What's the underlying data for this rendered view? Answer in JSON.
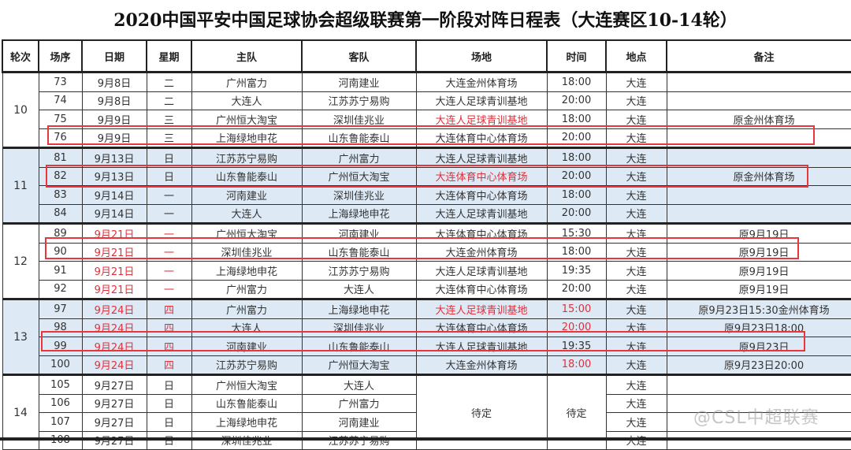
{
  "title": "2020中国平安中国足球协会超级联赛第一阶段对阵日程表（大连赛区10-14轮）",
  "headers": [
    "轮次",
    "场序",
    "日期",
    "星期",
    "主队",
    "客队",
    "场地",
    "时间",
    "地点",
    "备注"
  ],
  "colors": {
    "highlight": "#e8363c",
    "red_text": "#e0303a",
    "alt_row": "#dde9f5"
  },
  "rounds": [
    {
      "round": "10",
      "shaded": false,
      "matches": [
        {
          "no": "73",
          "date": "9月8日",
          "day": "二",
          "home": "广州富力",
          "away": "河南建业",
          "venue": "大连金州体育场",
          "time": "18:00",
          "city": "大连",
          "note": ""
        },
        {
          "no": "74",
          "date": "9月8日",
          "day": "二",
          "home": "大连人",
          "away": "江苏苏宁易购",
          "venue": "大连人足球青训基地",
          "time": "20:00",
          "city": "大连",
          "note": ""
        },
        {
          "no": "75",
          "date": "9月9日",
          "day": "三",
          "home": "广州恒大淘宝",
          "away": "深圳佳兆业",
          "venue": "大连人足球青训基地",
          "venue_red": true,
          "time": "18:00",
          "city": "大连",
          "note": "原金州体育场"
        },
        {
          "no": "76",
          "date": "9月9日",
          "day": "三",
          "home": "上海绿地申花",
          "away": "山东鲁能泰山",
          "venue": "大连体育中心体育场",
          "time": "20:00",
          "city": "大连",
          "note": "",
          "highlighted": true
        }
      ]
    },
    {
      "round": "11",
      "shaded": true,
      "matches": [
        {
          "no": "81",
          "date": "9月13日",
          "day": "日",
          "home": "江苏苏宁易购",
          "away": "广州富力",
          "venue": "大连人足球青训基地",
          "time": "18:00",
          "city": "大连",
          "note": ""
        },
        {
          "no": "82",
          "date": "9月13日",
          "day": "日",
          "home": "山东鲁能泰山",
          "away": "广州恒大淘宝",
          "venue": "大连体育中心体育场",
          "venue_red": true,
          "time": "20:00",
          "city": "大连",
          "note": "原金州体育场",
          "highlighted": true
        },
        {
          "no": "83",
          "date": "9月14日",
          "day": "一",
          "home": "河南建业",
          "away": "深圳佳兆业",
          "venue": "大连体育中心体育场",
          "time": "18:00",
          "city": "大连",
          "note": ""
        },
        {
          "no": "84",
          "date": "9月14日",
          "day": "一",
          "home": "大连人",
          "away": "上海绿地申花",
          "venue": "大连人足球青训基地",
          "time": "20:00",
          "city": "大连",
          "note": ""
        }
      ]
    },
    {
      "round": "12",
      "shaded": false,
      "date_red": true,
      "matches": [
        {
          "no": "89",
          "date": "9月21日",
          "day": "一",
          "home": "广州恒大淘宝",
          "away": "河南建业",
          "venue": "大连体育中心体育场",
          "time": "15:30",
          "city": "大连",
          "note": "原9月19日"
        },
        {
          "no": "90",
          "date": "9月21日",
          "day": "一",
          "home": "深圳佳兆业",
          "away": "山东鲁能泰山",
          "venue": "大连金州体育场",
          "time": "18:00",
          "city": "大连",
          "note": "原9月19日",
          "highlighted": true
        },
        {
          "no": "91",
          "date": "9月21日",
          "day": "一",
          "home": "上海绿地申花",
          "away": "江苏苏宁易购",
          "venue": "大连人足球青训基地",
          "time": "19:35",
          "city": "大连",
          "note": "原9月19日"
        },
        {
          "no": "92",
          "date": "9月21日",
          "day": "一",
          "home": "广州富力",
          "away": "大连人",
          "venue": "大连体育中心体育场",
          "time": "20:00",
          "city": "大连",
          "note": "原9月19日"
        }
      ]
    },
    {
      "round": "13",
      "shaded": true,
      "date_red": true,
      "matches": [
        {
          "no": "97",
          "date": "9月24日",
          "day": "四",
          "home": "广州富力",
          "away": "上海绿地申花",
          "venue": "大连人足球青训基地",
          "venue_red": true,
          "time": "15:00",
          "time_red": true,
          "city": "大连",
          "note": "原9月23日15:30金州体育场"
        },
        {
          "no": "98",
          "date": "9月24日",
          "day": "四",
          "home": "大连人",
          "away": "深圳佳兆业",
          "venue": "大连体育中心体育场",
          "time": "20:00",
          "time_red": true,
          "city": "大连",
          "note": "原9月23日18:00"
        },
        {
          "no": "99",
          "date": "9月24日",
          "day": "四",
          "home": "河南建业",
          "away": "山东鲁能泰山",
          "venue": "大连人足球青训基地",
          "time": "19:35",
          "city": "大连",
          "note": "原9月23日",
          "highlighted": true
        },
        {
          "no": "100",
          "date": "9月24日",
          "day": "四",
          "home": "江苏苏宁易购",
          "away": "广州恒大淘宝",
          "venue": "大连金州体育场",
          "time": "18:00",
          "time_red": true,
          "city": "大连",
          "note": "原9月23日20:00"
        }
      ]
    },
    {
      "round": "14",
      "shaded": false,
      "merged_venue": "待定",
      "merged_time": "待定",
      "matches": [
        {
          "no": "105",
          "date": "9月27日",
          "day": "日",
          "home": "广州恒大淘宝",
          "away": "大连人",
          "city": "大连",
          "note": ""
        },
        {
          "no": "106",
          "date": "9月27日",
          "day": "日",
          "home": "山东鲁能泰山",
          "away": "广州富力",
          "city": "大连",
          "note": ""
        },
        {
          "no": "107",
          "date": "9月27日",
          "day": "日",
          "home": "上海绿地申花",
          "away": "河南建业",
          "city": "大连",
          "note": ""
        },
        {
          "no": "108",
          "date": "9月27日",
          "day": "日",
          "home": "深圳佳兆业",
          "away": "江苏苏宁易购",
          "city": "大连",
          "note": ""
        }
      ]
    }
  ],
  "watermark": "@CSL中超联赛"
}
